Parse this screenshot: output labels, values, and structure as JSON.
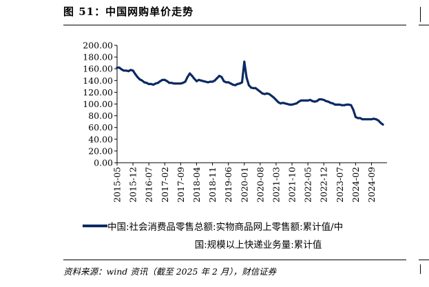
{
  "header": {
    "title": "图 51：中国网购单价走势"
  },
  "chart_data": {
    "type": "line",
    "xlabel": "",
    "ylabel": "",
    "ylim": [
      0,
      200
    ],
    "y_ticks": [
      "0.00",
      "20.00",
      "40.00",
      "60.00",
      "80.00",
      "100.00",
      "120.00",
      "140.00",
      "160.00",
      "180.00",
      "200.00"
    ],
    "x_tick_labels": [
      "2015-05",
      "2015-12",
      "2016-07",
      "2017-02",
      "2017-09",
      "2018-04",
      "2018-11",
      "2019-06",
      "2020-01",
      "2020-08",
      "2021-03",
      "2021-10",
      "2022-05",
      "2022-12",
      "2023-07",
      "2024-02",
      "2024-09"
    ],
    "grid": false,
    "legend_position": "bottom",
    "line_color": "#0b2a63",
    "series": [
      {
        "name": "中国:社会消费品零售总额:实物商品网上零售额:累计值/中国:规模以上快递业务量:累计值",
        "x": [
          "2015-05",
          "2015-06",
          "2015-07",
          "2015-08",
          "2015-09",
          "2015-10",
          "2015-11",
          "2015-12",
          "2016-01",
          "2016-02",
          "2016-03",
          "2016-04",
          "2016-05",
          "2016-06",
          "2016-07",
          "2016-08",
          "2016-09",
          "2016-10",
          "2016-11",
          "2016-12",
          "2017-01",
          "2017-02",
          "2017-03",
          "2017-04",
          "2017-05",
          "2017-06",
          "2017-07",
          "2017-08",
          "2017-09",
          "2017-10",
          "2017-11",
          "2017-12",
          "2018-01",
          "2018-02",
          "2018-03",
          "2018-04",
          "2018-05",
          "2018-06",
          "2018-07",
          "2018-08",
          "2018-09",
          "2018-10",
          "2018-11",
          "2018-12",
          "2019-01",
          "2019-02",
          "2019-03",
          "2019-04",
          "2019-05",
          "2019-06",
          "2019-07",
          "2019-08",
          "2019-09",
          "2019-10",
          "2019-11",
          "2019-12",
          "2020-01",
          "2020-02",
          "2020-03",
          "2020-04",
          "2020-05",
          "2020-06",
          "2020-07",
          "2020-08",
          "2020-09",
          "2020-10",
          "2020-11",
          "2020-12",
          "2021-01",
          "2021-02",
          "2021-03",
          "2021-04",
          "2021-05",
          "2021-06",
          "2021-07",
          "2021-08",
          "2021-09",
          "2021-10",
          "2021-11",
          "2021-12",
          "2022-01",
          "2022-02",
          "2022-03",
          "2022-04",
          "2022-05",
          "2022-06",
          "2022-07",
          "2022-08",
          "2022-09",
          "2022-10",
          "2022-11",
          "2022-12",
          "2023-01",
          "2023-02",
          "2023-03",
          "2023-04",
          "2023-05",
          "2023-06",
          "2023-07",
          "2023-08",
          "2023-09",
          "2023-10",
          "2023-11",
          "2023-12",
          "2024-01",
          "2024-02",
          "2024-03",
          "2024-04",
          "2024-05",
          "2024-06",
          "2024-07",
          "2024-08",
          "2024-09",
          "2024-10",
          "2024-11",
          "2024-12",
          "2025-01",
          "2025-02"
        ],
        "values": [
          162,
          162,
          159,
          157,
          157,
          156,
          158,
          157,
          151,
          146,
          142,
          140,
          137,
          136,
          134,
          134,
          133,
          135,
          136,
          139,
          141,
          141,
          139,
          136,
          136,
          135,
          135,
          135,
          135,
          136,
          138,
          146,
          152,
          148,
          143,
          139,
          141,
          140,
          139,
          138,
          137,
          138,
          138,
          140,
          144,
          148,
          146,
          139,
          137,
          137,
          135,
          133,
          132,
          134,
          135,
          137,
          172,
          145,
          132,
          128,
          127,
          127,
          124,
          121,
          118,
          117,
          118,
          117,
          114,
          111,
          107,
          103,
          101,
          102,
          101,
          100,
          99,
          99,
          100,
          101,
          104,
          106,
          106,
          106,
          106,
          107,
          105,
          104,
          105,
          108,
          108,
          107,
          105,
          104,
          102,
          101,
          99,
          99,
          99,
          98,
          98,
          99,
          99,
          98,
          90,
          78,
          76,
          76,
          74,
          74,
          74,
          74,
          74,
          75,
          74,
          72,
          68,
          65
        ]
      }
    ]
  },
  "legend": {
    "line1": "中国:社会消费品零售总额:实物商品网上零售额:累计值/中",
    "line2": "国:规模以上快递业务量:累计值"
  },
  "footer": {
    "source": "资料来源：wind 资讯（截至 2025 年 2 月），财信证券"
  }
}
